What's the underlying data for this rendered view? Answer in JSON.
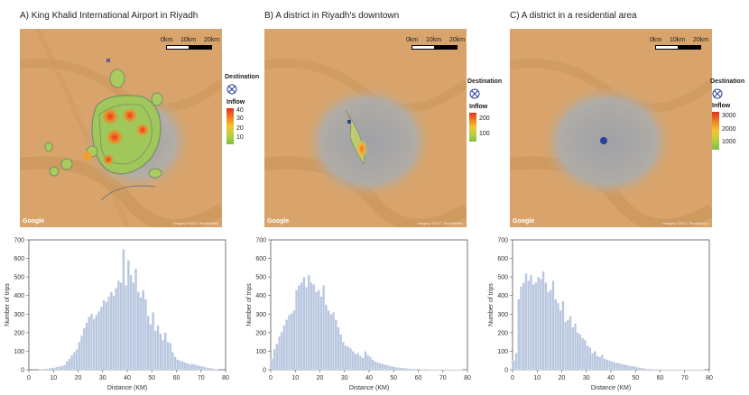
{
  "panels": [
    {
      "title": "A) King Khalid International Airport in Riyadh",
      "scale_labels": [
        "0km",
        "10km",
        "20km"
      ],
      "destination_label": "Destination",
      "inflow_label": "Inflow",
      "inflow_ticks": [
        "40",
        "30",
        "20",
        "10"
      ],
      "google_label": "Google",
      "imagery_label": "Imagery ©2017 TerraMetrics"
    },
    {
      "title": "B) A district in  Riyadh's downtown",
      "scale_labels": [
        "0km",
        "10km",
        "20km"
      ],
      "destination_label": "Destination",
      "inflow_label": "Inflow",
      "inflow_ticks": [
        "200",
        "100"
      ],
      "google_label": "Google",
      "imagery_label": "Imagery ©2017 TerraMetrics"
    },
    {
      "title": "C) A district in  a residential area",
      "scale_labels": [
        "0km",
        "10km",
        "20km"
      ],
      "destination_label": "Destination",
      "inflow_label": "Inflow",
      "inflow_ticks": [
        "3000",
        "2000",
        "1000"
      ],
      "google_label": "Google",
      "imagery_label": "Imagery ©2017 TerraMetrics"
    }
  ],
  "colors": {
    "bar": "#b8c6df",
    "bar_stroke": "#ffffff",
    "axis": "#555555",
    "desert": "#d9a66a",
    "city": "#a6a6a8",
    "contour": "#8a9a78",
    "destination": "#2b3f9a"
  },
  "chart_data": [
    {
      "type": "bar",
      "xlabel": "Distance (KM)",
      "ylabel": "Number of trips",
      "xlim": [
        0,
        80
      ],
      "ylim": [
        0,
        700
      ],
      "xticks": [
        0,
        10,
        20,
        30,
        40,
        50,
        60,
        70,
        80
      ],
      "yticks": [
        0,
        100,
        200,
        300,
        400,
        500,
        600,
        700
      ],
      "bin_width": 1,
      "x": [
        4,
        5,
        6,
        7,
        8,
        9,
        10,
        11,
        12,
        13,
        14,
        15,
        16,
        17,
        18,
        19,
        20,
        21,
        22,
        23,
        24,
        25,
        26,
        27,
        28,
        29,
        30,
        31,
        32,
        33,
        34,
        35,
        36,
        37,
        38,
        39,
        40,
        41,
        42,
        43,
        44,
        45,
        46,
        47,
        48,
        49,
        50,
        51,
        52,
        53,
        54,
        55,
        56,
        57,
        58,
        59,
        60,
        61,
        62,
        63,
        64,
        65,
        66,
        67,
        68,
        69,
        70,
        71,
        72,
        73,
        74,
        75,
        76
      ],
      "values": [
        3,
        4,
        5,
        6,
        8,
        10,
        12,
        15,
        18,
        20,
        25,
        45,
        60,
        80,
        95,
        110,
        150,
        185,
        225,
        255,
        285,
        300,
        275,
        295,
        315,
        340,
        375,
        365,
        395,
        420,
        400,
        440,
        480,
        470,
        650,
        455,
        590,
        510,
        470,
        545,
        420,
        390,
        430,
        380,
        290,
        245,
        310,
        210,
        240,
        195,
        160,
        200,
        150,
        145,
        95,
        70,
        55,
        50,
        45,
        40,
        35,
        30,
        32,
        28,
        25,
        20,
        18,
        15,
        12,
        10,
        8,
        5,
        3
      ]
    },
    {
      "type": "bar",
      "xlabel": "Distance (KM)",
      "ylabel": "Number of trips",
      "xlim": [
        0,
        80
      ],
      "ylim": [
        0,
        700
      ],
      "xticks": [
        0,
        10,
        20,
        30,
        40,
        50,
        60,
        70,
        80
      ],
      "yticks": [
        0,
        100,
        200,
        300,
        400,
        500,
        600,
        700
      ],
      "bin_width": 1,
      "x": [
        0,
        1,
        2,
        3,
        4,
        5,
        6,
        7,
        8,
        9,
        10,
        11,
        12,
        13,
        14,
        15,
        16,
        17,
        18,
        19,
        20,
        21,
        22,
        23,
        24,
        25,
        26,
        27,
        28,
        29,
        30,
        31,
        32,
        33,
        34,
        35,
        36,
        37,
        38,
        39,
        40,
        41,
        42,
        43,
        44,
        45,
        46,
        47,
        48,
        49,
        50,
        51,
        52,
        53,
        54,
        55,
        56,
        57,
        58,
        59,
        60,
        61,
        62,
        63,
        64,
        65,
        66,
        67,
        68,
        69,
        70,
        71,
        72,
        73,
        74,
        75,
        76,
        77
      ],
      "values": [
        60,
        110,
        140,
        180,
        205,
        240,
        270,
        295,
        305,
        320,
        430,
        455,
        470,
        500,
        445,
        510,
        470,
        460,
        420,
        430,
        395,
        455,
        350,
        320,
        300,
        310,
        270,
        230,
        190,
        150,
        130,
        125,
        115,
        100,
        85,
        90,
        75,
        65,
        100,
        80,
        70,
        55,
        45,
        40,
        35,
        30,
        28,
        25,
        20,
        18,
        15,
        12,
        12,
        10,
        8,
        8,
        6,
        5,
        5,
        4,
        4,
        3,
        3,
        3,
        2,
        2,
        2,
        2,
        2,
        2,
        2,
        2,
        2,
        1,
        1,
        1,
        1,
        1
      ]
    },
    {
      "type": "bar",
      "xlabel": "Distance (KM)",
      "ylabel": "Number of trips",
      "xlim": [
        0,
        80
      ],
      "ylim": [
        0,
        700
      ],
      "xticks": [
        0,
        10,
        20,
        30,
        40,
        50,
        60,
        70,
        80
      ],
      "yticks": [
        0,
        100,
        200,
        300,
        400,
        500,
        600,
        700
      ],
      "bin_width": 1,
      "x": [
        0,
        1,
        2,
        3,
        4,
        5,
        6,
        7,
        8,
        9,
        10,
        11,
        12,
        13,
        14,
        15,
        16,
        17,
        18,
        19,
        20,
        21,
        22,
        23,
        24,
        25,
        26,
        27,
        28,
        29,
        30,
        31,
        32,
        33,
        34,
        35,
        36,
        37,
        38,
        39,
        40,
        41,
        42,
        43,
        44,
        45,
        46,
        47,
        48,
        49,
        50,
        51,
        52,
        53,
        54,
        55,
        56,
        57,
        58,
        59,
        60,
        61,
        62,
        63,
        64,
        65,
        66,
        67,
        68,
        69,
        70,
        71,
        72,
        73,
        74,
        75,
        76,
        77
      ],
      "values": [
        50,
        90,
        380,
        450,
        470,
        520,
        480,
        510,
        460,
        470,
        500,
        490,
        530,
        470,
        420,
        430,
        480,
        380,
        360,
        320,
        370,
        260,
        270,
        290,
        230,
        250,
        200,
        190,
        170,
        160,
        130,
        120,
        90,
        100,
        75,
        70,
        80,
        60,
        55,
        50,
        45,
        40,
        38,
        35,
        30,
        28,
        25,
        22,
        20,
        18,
        15,
        12,
        10,
        8,
        6,
        5,
        4,
        3,
        3,
        2,
        2,
        2,
        2,
        1,
        1,
        1,
        1,
        1,
        1,
        1,
        1,
        1,
        1,
        1,
        1,
        1,
        1,
        1
      ]
    }
  ]
}
